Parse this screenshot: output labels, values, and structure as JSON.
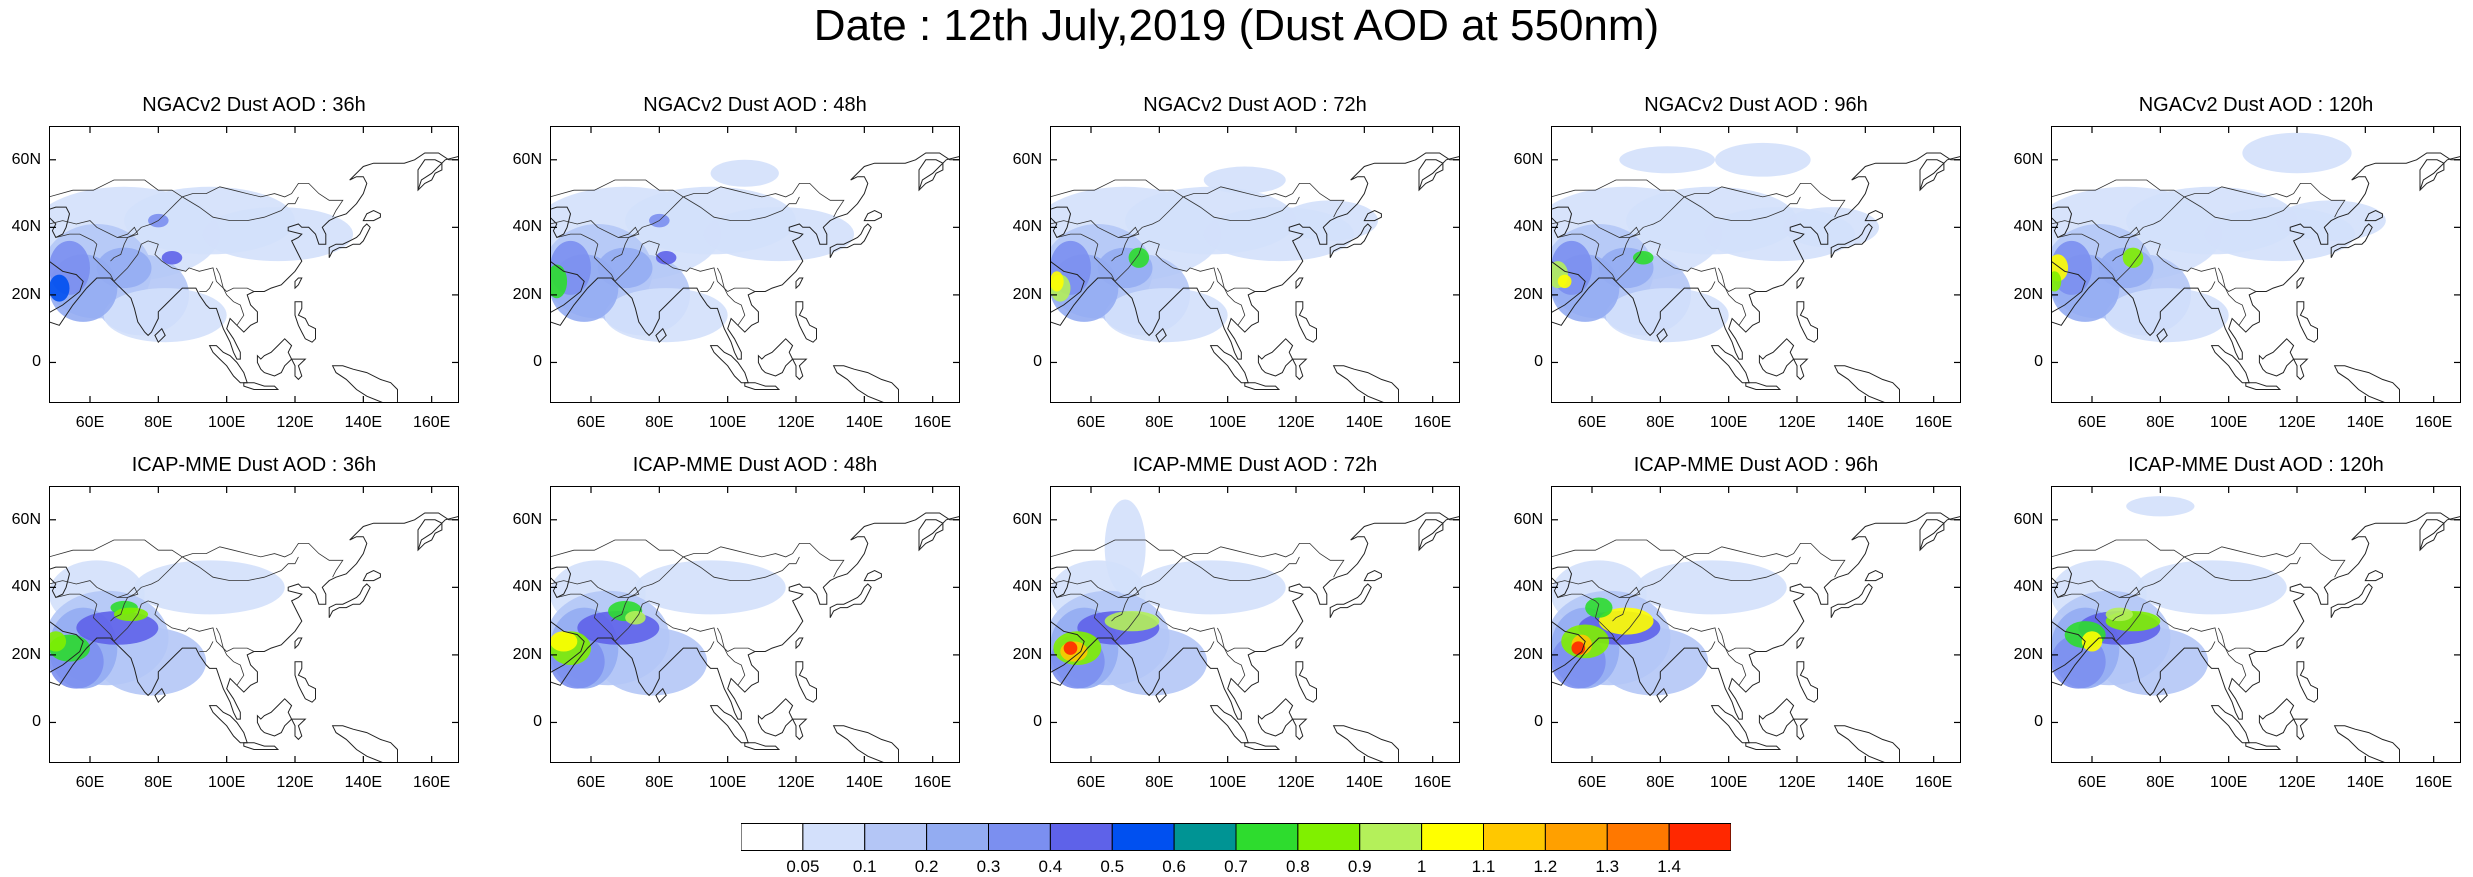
{
  "title": "Date : 12th July,2019 (Dust AOD at 550nm)",
  "map_extent": {
    "lon": [
      48,
      168
    ],
    "lat": [
      -12,
      70
    ]
  },
  "lon_ticks": [
    {
      "value": 60,
      "label": "60E"
    },
    {
      "value": 80,
      "label": "80E"
    },
    {
      "value": 100,
      "label": "100E"
    },
    {
      "value": 120,
      "label": "120E"
    },
    {
      "value": 140,
      "label": "140E"
    },
    {
      "value": 160,
      "label": "160E"
    }
  ],
  "lat_ticks": [
    {
      "value": 60,
      "label": "60N"
    },
    {
      "value": 40,
      "label": "40N"
    },
    {
      "value": 20,
      "label": "20N"
    },
    {
      "value": 0,
      "label": "0"
    }
  ],
  "panels": [
    {
      "title": "NGACv2 Dust AOD : 36h",
      "model": "NGACv2",
      "lead": 36
    },
    {
      "title": "NGACv2 Dust AOD : 48h",
      "model": "NGACv2",
      "lead": 48
    },
    {
      "title": "NGACv2 Dust AOD : 72h",
      "model": "NGACv2",
      "lead": 72
    },
    {
      "title": "NGACv2 Dust AOD : 96h",
      "model": "NGACv2",
      "lead": 96
    },
    {
      "title": "NGACv2 Dust AOD : 120h",
      "model": "NGACv2",
      "lead": 120
    },
    {
      "title": "ICAP-MME Dust AOD : 36h",
      "model": "ICAP-MME",
      "lead": 36
    },
    {
      "title": "ICAP-MME Dust AOD : 48h",
      "model": "ICAP-MME",
      "lead": 48
    },
    {
      "title": "ICAP-MME Dust AOD : 72h",
      "model": "ICAP-MME",
      "lead": 72
    },
    {
      "title": "ICAP-MME Dust AOD : 96h",
      "model": "ICAP-MME",
      "lead": 96
    },
    {
      "title": "ICAP-MME Dust AOD : 120h",
      "model": "ICAP-MME",
      "lead": 120
    }
  ],
  "colorbar": {
    "colors": [
      "#ffffff",
      "#d3e0fb",
      "#b4c6f6",
      "#93acf2",
      "#7b8ff0",
      "#5e62e9",
      "#0050f0",
      "#009494",
      "#2edc2e",
      "#80f000",
      "#b4f05a",
      "#ffff00",
      "#ffc800",
      "#ffa000",
      "#ff7800",
      "#ff2800"
    ],
    "labels": [
      "0.05",
      "0.1",
      "0.2",
      "0.3",
      "0.4",
      "0.5",
      "0.6",
      "0.7",
      "0.8",
      "0.9",
      "1",
      "1.1",
      "1.2",
      "1.3",
      "1.4"
    ]
  }
}
